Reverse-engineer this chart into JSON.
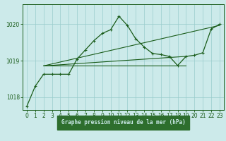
{
  "title": "Graphe pression niveau de la mer (hPa)",
  "bg_color": "#cceaea",
  "plot_bg": "#cceaea",
  "grid_color": "#99cccc",
  "line_color": "#1a5c1a",
  "xlabel_bg": "#2d6e2d",
  "xlabel_fg": "#cceaea",
  "ylim": [
    1017.65,
    1020.55
  ],
  "xlim": [
    -0.5,
    23.5
  ],
  "yticks": [
    1018,
    1019,
    1020
  ],
  "xticks": [
    0,
    1,
    2,
    3,
    4,
    5,
    6,
    7,
    8,
    9,
    10,
    11,
    12,
    13,
    14,
    15,
    16,
    17,
    18,
    19,
    20,
    21,
    22,
    23
  ],
  "series1_x": [
    0,
    1,
    2,
    3,
    4,
    5,
    6,
    7,
    8,
    9,
    10,
    11,
    12,
    13,
    14,
    15,
    16,
    17,
    18,
    19,
    20,
    21,
    22,
    23
  ],
  "series1_y": [
    1017.75,
    1018.3,
    1018.63,
    1018.63,
    1018.63,
    1018.63,
    1019.05,
    1019.3,
    1019.55,
    1019.75,
    1019.85,
    1020.22,
    1019.97,
    1019.6,
    1019.38,
    1019.2,
    1019.17,
    1019.12,
    1018.87,
    1019.12,
    1019.15,
    1019.22,
    1019.87,
    1020.0
  ],
  "series2_x": [
    2,
    23
  ],
  "series2_y": [
    1018.86,
    1019.97
  ],
  "series3_x": [
    2,
    19
  ],
  "series3_y": [
    1018.86,
    1018.86
  ],
  "series4_x": [
    2,
    19
  ],
  "series4_y": [
    1018.86,
    1019.12
  ]
}
